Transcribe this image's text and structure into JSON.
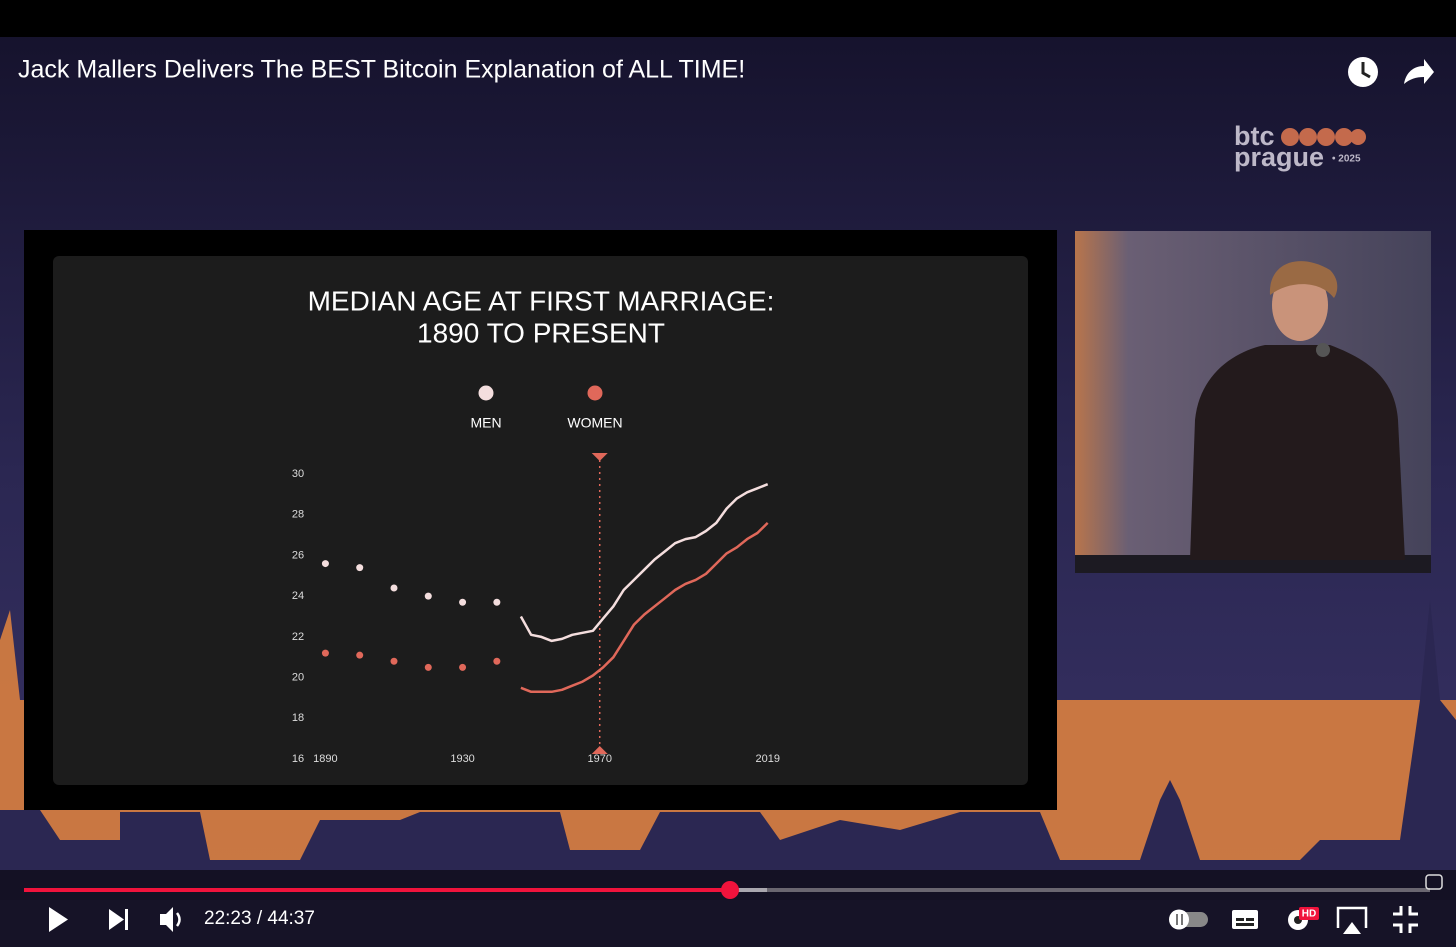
{
  "video": {
    "title": "Jack Mallers Delivers The BEST Bitcoin Explanation of ALL TIME!",
    "time": "22:23 / 44:37",
    "quality_badge": "HD"
  },
  "logo": {
    "line1": "btc",
    "line2": "prague",
    "year": "• 2025"
  },
  "chart_data": {
    "type": "line",
    "title": [
      "MEDIAN AGE AT FIRST MARRIAGE:",
      "1890 TO PRESENT"
    ],
    "xlim": [
      1882,
      2022
    ],
    "xticks": [
      1890,
      1930,
      1970,
      2019
    ],
    "ylim": [
      16,
      30
    ],
    "yticks": [
      16,
      18,
      20,
      22,
      24,
      26,
      28,
      30
    ],
    "highlight_x": 1970,
    "series": [
      {
        "name": "MEN",
        "color": "#f4dede",
        "x": [
          1890,
          1900,
          1910,
          1920,
          1930,
          1940
        ],
        "values": [
          25.6,
          25.4,
          24.4,
          24.0,
          23.7,
          23.7
        ],
        "line_x": [
          1947,
          1950,
          1953,
          1956,
          1959,
          1962,
          1965,
          1968,
          1971,
          1974,
          1977,
          1980,
          1983,
          1986,
          1989,
          1992,
          1995,
          1998,
          2001,
          2004,
          2007,
          2010,
          2013,
          2016,
          2019
        ],
        "line_values": [
          23.0,
          22.1,
          22.0,
          21.8,
          21.9,
          22.1,
          22.2,
          22.3,
          22.9,
          23.5,
          24.3,
          24.8,
          25.3,
          25.8,
          26.2,
          26.6,
          26.8,
          26.9,
          27.2,
          27.6,
          28.3,
          28.8,
          29.1,
          29.3,
          29.5
        ]
      },
      {
        "name": "WOMEN",
        "color": "#e0685a",
        "x": [
          1890,
          1900,
          1910,
          1920,
          1930,
          1940
        ],
        "values": [
          21.2,
          21.1,
          20.8,
          20.5,
          20.5,
          20.8
        ],
        "line_x": [
          1947,
          1950,
          1953,
          1956,
          1959,
          1962,
          1965,
          1968,
          1971,
          1974,
          1977,
          1980,
          1983,
          1986,
          1989,
          1992,
          1995,
          1998,
          2001,
          2004,
          2007,
          2010,
          2013,
          2016,
          2019
        ],
        "line_values": [
          19.5,
          19.3,
          19.3,
          19.3,
          19.4,
          19.6,
          19.8,
          20.1,
          20.5,
          21.0,
          21.8,
          22.6,
          23.1,
          23.5,
          23.9,
          24.3,
          24.6,
          24.8,
          25.1,
          25.6,
          26.1,
          26.4,
          26.8,
          27.1,
          27.6
        ]
      }
    ]
  }
}
